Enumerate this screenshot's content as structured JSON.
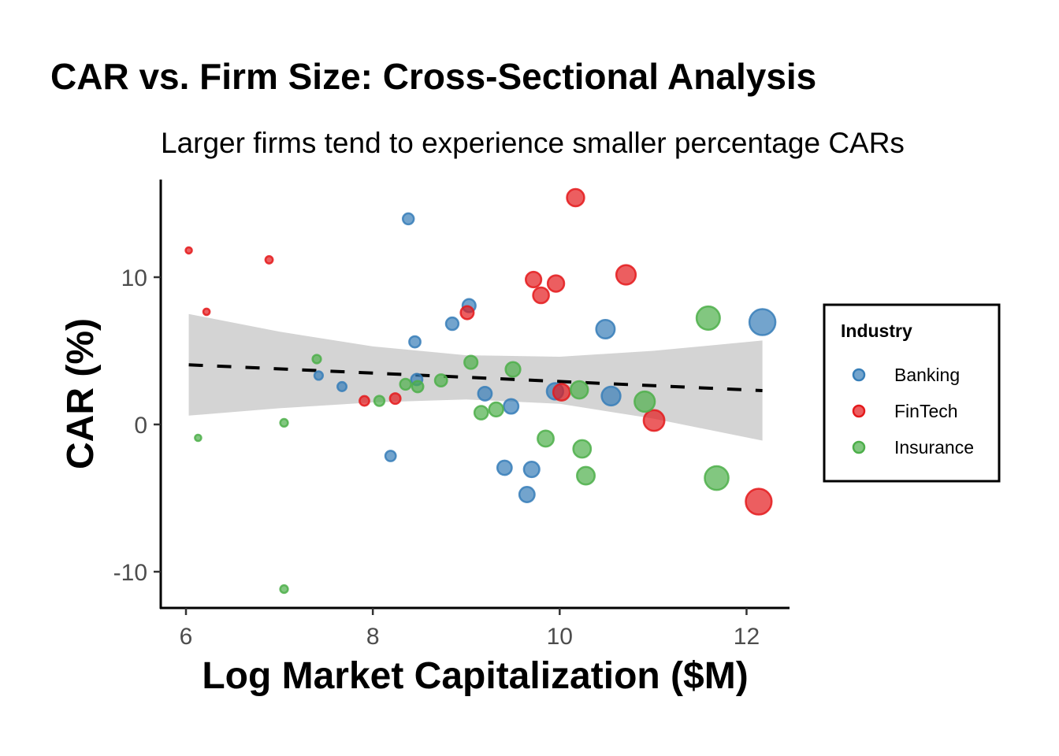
{
  "chart_data": {
    "type": "scatter",
    "title": "CAR vs. Firm Size: Cross-Sectional Analysis",
    "subtitle": "Larger firms tend to experience smaller percentage CARs",
    "xlabel": "Log Market Capitalization ($M)",
    "ylabel": "CAR (%)",
    "xlim": [
      5.73,
      12.46
    ],
    "ylim": [
      -12.46,
      16.63
    ],
    "xticks": [
      6,
      8,
      10,
      12
    ],
    "xtick_labels": [
      "6",
      "8",
      "10",
      "12"
    ],
    "yticks": [
      -10,
      0,
      10
    ],
    "ytick_labels": [
      "-10",
      "0",
      "10"
    ],
    "grid": false,
    "legend": {
      "title": "Industry",
      "position": "right",
      "entries": [
        "Banking",
        "FinTech",
        "Insurance"
      ]
    },
    "colors": {
      "Banking": "#377eb8",
      "FinTech": "#e41a1c",
      "Insurance": "#4daf4a"
    },
    "series": [
      {
        "name": "Banking",
        "points": [
          [
            8.38,
            13.96
          ],
          [
            7.42,
            3.32
          ],
          [
            7.67,
            2.57
          ],
          [
            8.45,
            5.61
          ],
          [
            8.47,
            3.05
          ],
          [
            8.19,
            -2.14
          ],
          [
            8.85,
            6.84
          ],
          [
            9.03,
            8.07
          ],
          [
            9.2,
            2.09
          ],
          [
            9.48,
            1.23
          ],
          [
            9.41,
            -2.94
          ],
          [
            9.7,
            -3.05
          ],
          [
            9.65,
            -4.76
          ],
          [
            9.95,
            2.25
          ],
          [
            10.49,
            6.47
          ],
          [
            10.55,
            1.93
          ],
          [
            12.17,
            6.95
          ]
        ]
      },
      {
        "name": "FinTech",
        "points": [
          [
            6.03,
            11.82
          ],
          [
            6.22,
            7.65
          ],
          [
            6.89,
            11.18
          ],
          [
            7.91,
            1.6
          ],
          [
            8.24,
            1.76
          ],
          [
            9.01,
            7.59
          ],
          [
            10.17,
            15.4
          ],
          [
            9.72,
            9.84
          ],
          [
            9.96,
            9.57
          ],
          [
            9.8,
            8.77
          ],
          [
            10.02,
            2.19
          ],
          [
            10.71,
            10.16
          ],
          [
            11.01,
            0.27
          ],
          [
            12.13,
            -5.24
          ]
        ]
      },
      {
        "name": "Insurance",
        "points": [
          [
            6.13,
            -0.91
          ],
          [
            7.05,
            0.11
          ],
          [
            7.05,
            -11.18
          ],
          [
            7.4,
            4.44
          ],
          [
            8.07,
            1.6
          ],
          [
            8.35,
            2.73
          ],
          [
            8.48,
            2.57
          ],
          [
            8.73,
            2.99
          ],
          [
            9.05,
            4.22
          ],
          [
            9.16,
            0.8
          ],
          [
            9.32,
            1.02
          ],
          [
            9.5,
            3.74
          ],
          [
            9.85,
            -0.96
          ],
          [
            10.21,
            2.35
          ],
          [
            10.24,
            -1.66
          ],
          [
            10.28,
            -3.48
          ],
          [
            10.91,
            1.55
          ],
          [
            11.59,
            7.22
          ],
          [
            11.68,
            -3.64
          ]
        ]
      }
    ],
    "trend": {
      "type": "linear",
      "style": "dashed",
      "x": [
        6.03,
        12.17
      ],
      "y": [
        4.05,
        2.3
      ]
    },
    "confidence_band": {
      "x": [
        6.03,
        7,
        8,
        9,
        10,
        11,
        12.17
      ],
      "lower": [
        0.6,
        1.1,
        1.5,
        1.7,
        1.4,
        0.4,
        -1.1
      ],
      "upper": [
        7.5,
        6.3,
        5.3,
        4.7,
        4.6,
        5.0,
        5.7
      ]
    }
  }
}
